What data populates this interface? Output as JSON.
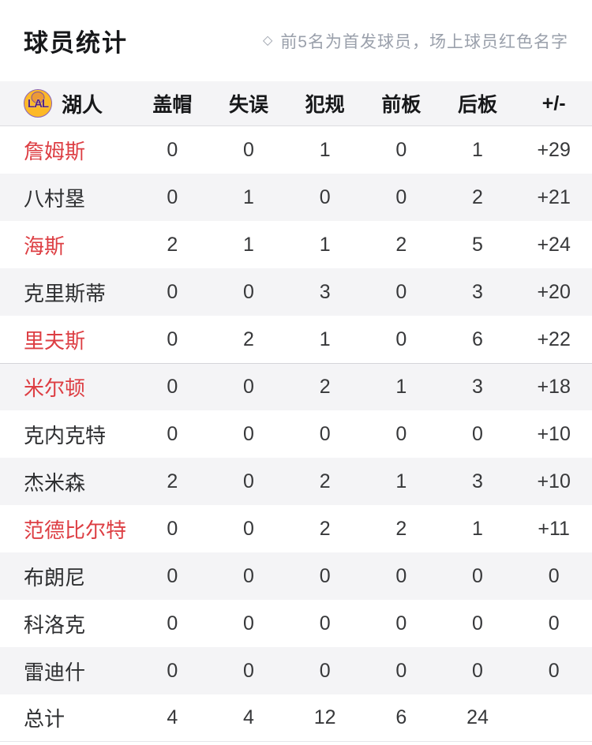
{
  "header": {
    "title": "球员统计",
    "note_icon": "◇",
    "note": "前5名为首发球员，场上球员红色名字"
  },
  "table": {
    "team": {
      "name": "湖人",
      "logo_text": "LAL"
    },
    "columns": [
      "盖帽",
      "失误",
      "犯规",
      "前板",
      "后板",
      "+/-"
    ],
    "rows": [
      {
        "name": "詹姆斯",
        "on_court": true,
        "values": [
          "0",
          "0",
          "1",
          "0",
          "1",
          "+29"
        ]
      },
      {
        "name": "八村塁",
        "on_court": false,
        "values": [
          "0",
          "1",
          "0",
          "0",
          "2",
          "+21"
        ]
      },
      {
        "name": "海斯",
        "on_court": true,
        "values": [
          "2",
          "1",
          "1",
          "2",
          "5",
          "+24"
        ]
      },
      {
        "name": "克里斯蒂",
        "on_court": false,
        "values": [
          "0",
          "0",
          "3",
          "0",
          "3",
          "+20"
        ]
      },
      {
        "name": "里夫斯",
        "on_court": true,
        "values": [
          "0",
          "2",
          "1",
          "0",
          "6",
          "+22"
        ]
      },
      {
        "name": "米尔顿",
        "on_court": true,
        "section_divider": true,
        "values": [
          "0",
          "0",
          "2",
          "1",
          "3",
          "+18"
        ]
      },
      {
        "name": "克内克特",
        "on_court": false,
        "values": [
          "0",
          "0",
          "0",
          "0",
          "0",
          "+10"
        ]
      },
      {
        "name": "杰米森",
        "on_court": false,
        "values": [
          "2",
          "0",
          "2",
          "1",
          "3",
          "+10"
        ]
      },
      {
        "name": "范德比尔特",
        "on_court": true,
        "values": [
          "0",
          "0",
          "2",
          "2",
          "1",
          "+11"
        ]
      },
      {
        "name": "布朗尼",
        "on_court": false,
        "values": [
          "0",
          "0",
          "0",
          "0",
          "0",
          "0"
        ]
      },
      {
        "name": "科洛克",
        "on_court": false,
        "values": [
          "0",
          "0",
          "0",
          "0",
          "0",
          "0"
        ]
      },
      {
        "name": "雷迪什",
        "on_court": false,
        "values": [
          "0",
          "0",
          "0",
          "0",
          "0",
          "0"
        ]
      },
      {
        "name": "总计",
        "on_court": false,
        "is_total": true,
        "values": [
          "4",
          "4",
          "12",
          "6",
          "24",
          ""
        ]
      }
    ]
  },
  "colors": {
    "on_court_red": "#dd3e43",
    "row_alt_bg": "#f4f4f6",
    "header_band_bg": "#f4f4f6",
    "note_gray": "#9aa0ab",
    "lakers_gold": "#fdb927",
    "lakers_purple": "#552583"
  }
}
